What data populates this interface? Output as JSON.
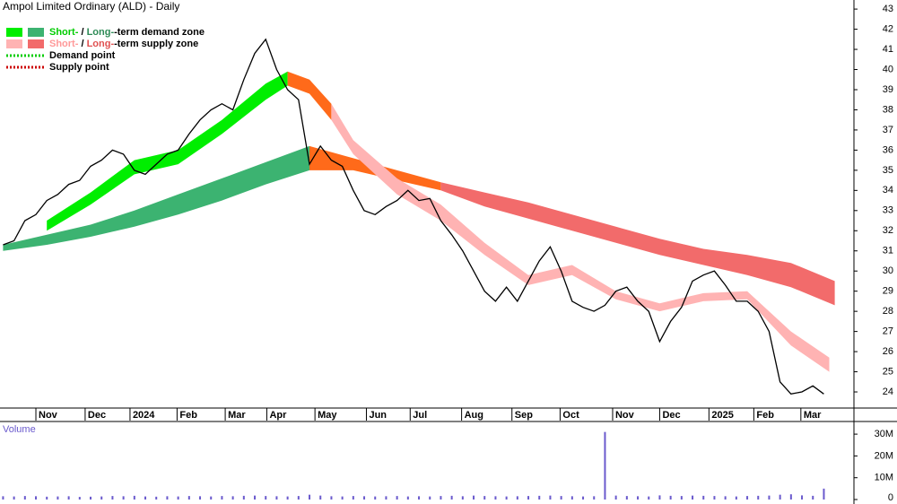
{
  "chart_data": {
    "type": "line",
    "title": "Ampol Limited Ordinary (ALD) - Daily",
    "color": "#000000",
    "x": [
      -3,
      -2,
      -1,
      0,
      1,
      2,
      3,
      4,
      5,
      6,
      7,
      8,
      9,
      10,
      11,
      12,
      13,
      14,
      15,
      16,
      17,
      18,
      19,
      20,
      21,
      22,
      23,
      24,
      25,
      26,
      27,
      28,
      29,
      30,
      31,
      32,
      33,
      34,
      35,
      36,
      37,
      38,
      39,
      40,
      41,
      42,
      43,
      44,
      45,
      46,
      47,
      48,
      49,
      50,
      51,
      52,
      53,
      54,
      55,
      56,
      57,
      58,
      59,
      60,
      61,
      62,
      63,
      64,
      65,
      66,
      67,
      68,
      69,
      70,
      71,
      72
    ],
    "values": [
      31.3,
      31.5,
      32.5,
      32.8,
      33.5,
      33.8,
      34.3,
      34.5,
      35.2,
      35.5,
      36.0,
      35.8,
      35.0,
      34.8,
      35.3,
      35.8,
      36.0,
      36.8,
      37.5,
      38.0,
      38.3,
      38.0,
      39.5,
      40.8,
      41.5,
      40.0,
      39.0,
      38.5,
      35.3,
      36.2,
      35.5,
      35.2,
      34.0,
      33.0,
      32.8,
      33.2,
      33.5,
      34.0,
      33.5,
      33.6,
      32.5,
      31.8,
      31.0,
      30.0,
      29.0,
      28.5,
      29.2,
      28.5,
      29.5,
      30.5,
      31.2,
      30.0,
      28.5,
      28.2,
      28.0,
      28.3,
      29.0,
      29.2,
      28.5,
      28.0,
      26.5,
      27.5,
      28.2,
      29.5,
      29.8,
      30.0,
      29.3,
      28.5,
      28.5,
      28.0,
      27.0,
      24.5,
      23.9,
      24.0,
      24.3,
      23.9
    ],
    "xlim": [
      -3.28,
      74.75
    ],
    "ylim": [
      23.2,
      43.45
    ],
    "yticks": [
      24,
      25,
      26,
      27,
      28,
      29,
      30,
      31,
      32,
      33,
      34,
      35,
      36,
      37,
      38,
      39,
      40,
      41,
      42,
      43
    ],
    "xticks": [
      {
        "value": 0,
        "label": "Nov"
      },
      {
        "value": 4.5,
        "label": "Dec"
      },
      {
        "value": 8.6,
        "label": "2024"
      },
      {
        "value": 12.9,
        "label": "Feb"
      },
      {
        "value": 17.3,
        "label": "Mar"
      },
      {
        "value": 21.1,
        "label": "Apr"
      },
      {
        "value": 25.5,
        "label": "May"
      },
      {
        "value": 30.2,
        "label": "Jun"
      },
      {
        "value": 34.2,
        "label": "Jul"
      },
      {
        "value": 38.9,
        "label": "Aug"
      },
      {
        "value": 43.5,
        "label": "Sep"
      },
      {
        "value": 47.9,
        "label": "Oct"
      },
      {
        "value": 52.7,
        "label": "Nov"
      },
      {
        "value": 57.0,
        "label": "Dec"
      },
      {
        "value": 61.5,
        "label": "2025"
      },
      {
        "value": 65.6,
        "label": "Feb"
      },
      {
        "value": 69.9,
        "label": "Mar"
      }
    ],
    "bands": [
      {
        "color": "#3cb371",
        "x": [
          -3,
          1,
          5,
          9,
          13,
          17,
          21,
          25
        ],
        "lower": [
          31.0,
          31.3,
          31.7,
          32.2,
          32.8,
          33.5,
          34.3,
          35.0
        ],
        "upper": [
          31.3,
          31.8,
          32.3,
          33.0,
          33.8,
          34.6,
          35.4,
          36.2
        ]
      },
      {
        "color": "#ff6a1a",
        "x": [
          25,
          29,
          33,
          37
        ],
        "lower": [
          35.0,
          35.0,
          34.5,
          34.0
        ],
        "upper": [
          36.2,
          35.6,
          35.0,
          34.4
        ]
      },
      {
        "color": "#f26b6b",
        "x": [
          37,
          41,
          45,
          49,
          53,
          57,
          61,
          65,
          69,
          73
        ],
        "lower": [
          34.0,
          33.2,
          32.6,
          32.0,
          31.4,
          30.8,
          30.3,
          29.8,
          29.2,
          28.3
        ],
        "upper": [
          34.4,
          33.9,
          33.4,
          32.8,
          32.2,
          31.6,
          31.1,
          30.8,
          30.4,
          29.5
        ]
      },
      {
        "color": "#00ee00",
        "x": [
          1,
          5,
          9,
          13,
          17,
          21,
          23
        ],
        "lower": [
          32.0,
          33.3,
          34.8,
          35.3,
          36.8,
          38.5,
          39.2
        ],
        "upper": [
          32.5,
          33.9,
          35.5,
          36.0,
          37.5,
          39.3,
          39.9
        ]
      },
      {
        "color": "#ff6a1a",
        "x": [
          23,
          25,
          27
        ],
        "lower": [
          39.2,
          38.8,
          37.5
        ],
        "upper": [
          39.9,
          39.5,
          38.3
        ]
      },
      {
        "color": "#ffb3b3",
        "x": [
          27,
          29,
          33,
          37,
          41,
          45,
          49,
          53,
          57,
          61,
          65,
          69,
          72.5
        ],
        "lower": [
          37.5,
          35.8,
          33.8,
          32.5,
          30.8,
          29.3,
          29.8,
          28.6,
          28.0,
          28.5,
          28.6,
          26.3,
          25.0
        ],
        "upper": [
          38.3,
          36.5,
          34.6,
          33.3,
          31.4,
          29.8,
          30.3,
          29.0,
          28.4,
          28.9,
          29.0,
          27.0,
          25.7
        ]
      }
    ],
    "legend": [
      {
        "swatches": [
          "#00ee00",
          "#3cb371"
        ],
        "parts": [
          {
            "text": "Short-",
            "color": "#00cc00"
          },
          {
            "text": " / "
          },
          {
            "text": "Long-",
            "color": "#2e8b57"
          },
          {
            "text": "-term demand zone"
          }
        ]
      },
      {
        "swatches": [
          "#ffb3b3",
          "#f26b6b"
        ],
        "parts": [
          {
            "text": "Short-",
            "color": "#ff9999"
          },
          {
            "text": " / "
          },
          {
            "text": "Long-",
            "color": "#e05050"
          },
          {
            "text": "-term supply zone"
          }
        ]
      },
      {
        "dotted": "#00cc00",
        "parts": [
          {
            "text": "Demand point"
          }
        ]
      },
      {
        "dotted": "#cc0000",
        "parts": [
          {
            "text": "Supply point"
          }
        ]
      }
    ],
    "volume": {
      "title": "Volume",
      "color": "#6a5acd",
      "values": [
        1500000,
        1400000,
        1600000,
        1500000,
        1300000,
        1400000,
        1500000,
        1200000,
        1300000,
        1400000,
        1600000,
        1500000,
        1700000,
        1400000,
        1300000,
        1500000,
        1400000,
        1600000,
        1500000,
        1400000,
        1600000,
        1500000,
        1700000,
        1800000,
        1600000,
        1500000,
        1400000,
        1600000,
        2200000,
        1800000,
        1500000,
        1400000,
        1600000,
        1500000,
        1400000,
        1500000,
        1600000,
        1400000,
        1500000,
        1400000,
        1600000,
        1700000,
        1500000,
        1800000,
        1600000,
        1500000,
        1400000,
        1500000,
        1600000,
        1700000,
        1800000,
        1600000,
        1500000,
        1400000,
        1500000,
        31000000,
        1800000,
        1600000,
        1500000,
        1400000,
        1900000,
        1700000,
        1600000,
        1800000,
        1700000,
        1600000,
        1500000,
        1400000,
        1600000,
        1700000,
        1800000,
        2200000,
        2400000,
        1900000,
        1700000,
        5000000
      ],
      "ylim": [
        0,
        35800000
      ],
      "yticks": [
        0,
        {
          "value": 10000000,
          "label": "10M"
        },
        {
          "value": 20000000,
          "label": "20M"
        },
        {
          "value": 30000000,
          "label": "30M"
        }
      ]
    }
  }
}
